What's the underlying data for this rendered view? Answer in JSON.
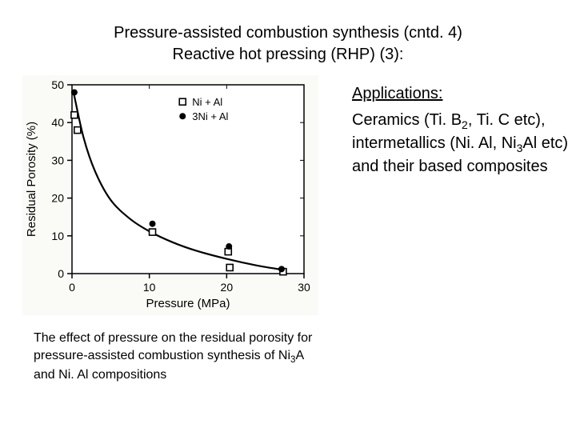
{
  "title": {
    "line1": "Pressure-assisted combustion synthesis (cntd. 4)",
    "line2": "Reactive hot pressing (RHP) (3):"
  },
  "chart": {
    "type": "scatter+line",
    "background_color": "#fafaf7",
    "plot_bg": "#ffffff",
    "grid_color": "#000000",
    "axis_color": "#000000",
    "tick_fontsize": 14,
    "label_fontsize": 15,
    "xlabel": "Pressure (MPa)",
    "ylabel": "Residual Porosity (%)",
    "xlim": [
      0,
      30
    ],
    "ylim": [
      0,
      50
    ],
    "xtick_step": 10,
    "ytick_step": 10,
    "series": [
      {
        "name": "Ni + Al",
        "marker": "square-open",
        "marker_size": 8,
        "color": "#000000",
        "points": [
          {
            "x": 0.3,
            "y": 42
          },
          {
            "x": 0.7,
            "y": 38
          },
          {
            "x": 10.4,
            "y": 11
          },
          {
            "x": 20.2,
            "y": 5.8
          },
          {
            "x": 20.4,
            "y": 1.6
          },
          {
            "x": 27.3,
            "y": 0.5
          }
        ]
      },
      {
        "name": "3Ni + Al",
        "marker": "circle-filled",
        "marker_size": 8,
        "color": "#000000",
        "points": [
          {
            "x": 0.3,
            "y": 48
          },
          {
            "x": 10.4,
            "y": 13.2
          },
          {
            "x": 20.3,
            "y": 7.2
          },
          {
            "x": 27.1,
            "y": 1.2
          }
        ]
      }
    ],
    "curve": {
      "color": "#000000",
      "width": 2.2,
      "points": [
        {
          "x": 0.2,
          "y": 48
        },
        {
          "x": 1.5,
          "y": 36
        },
        {
          "x": 3,
          "y": 27
        },
        {
          "x": 5,
          "y": 19.5
        },
        {
          "x": 7.5,
          "y": 14.5
        },
        {
          "x": 10,
          "y": 11.2
        },
        {
          "x": 13,
          "y": 8.3
        },
        {
          "x": 16,
          "y": 6.1
        },
        {
          "x": 20,
          "y": 3.9
        },
        {
          "x": 24,
          "y": 2.1
        },
        {
          "x": 27.3,
          "y": 1.0
        }
      ]
    },
    "legend": {
      "x": 14.3,
      "y_top": 45.5,
      "fontsize": 13,
      "items": [
        {
          "marker": "square-open",
          "label": "Ni + Al"
        },
        {
          "marker": "circle-filled",
          "label": "3Ni + Al"
        }
      ]
    }
  },
  "caption": {
    "text_parts": [
      "The effect of pressure on the residual porosity for pressure-assisted combustion synthesis of Ni",
      "3",
      "A and Ni. Al compositions"
    ]
  },
  "applications": {
    "heading": "Applications:",
    "body_parts": [
      "Ceramics (Ti. B",
      "2",
      ", Ti. C etc), intermetallics (Ni. Al, Ni",
      "3",
      "Al etc) and their based composites"
    ]
  }
}
